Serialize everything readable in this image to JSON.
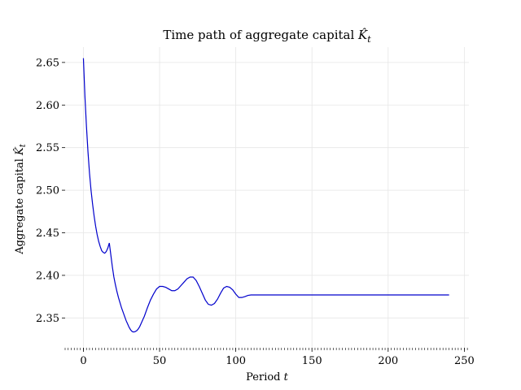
{
  "chart_data": {
    "type": "line",
    "title": "Time path of aggregate capital K̂_t",
    "xlabel": "Period t",
    "ylabel": "Aggregate capital K̂_t",
    "xlim": [
      -12,
      253
    ],
    "ylim": [
      2.315,
      2.668
    ],
    "xticks": [
      0,
      50,
      100,
      150,
      200,
      250
    ],
    "yticks": [
      2.35,
      2.4,
      2.45,
      2.5,
      2.55,
      2.6,
      2.65
    ],
    "x_minor_step": 2,
    "grid": true,
    "line_color": "#0000cc",
    "series": [
      {
        "x": [
          0,
          1,
          2,
          3,
          4,
          5,
          6,
          7,
          8,
          9,
          10,
          11,
          12,
          13,
          14,
          15,
          16,
          17,
          18,
          19,
          20,
          21,
          22,
          23,
          24,
          25,
          26,
          27,
          28,
          29,
          30,
          31,
          32,
          33,
          34,
          35,
          36,
          37,
          38,
          39,
          40,
          42,
          44,
          46,
          48,
          50,
          52,
          54,
          56,
          58,
          60,
          62,
          64,
          66,
          68,
          70,
          72,
          74,
          76,
          78,
          80,
          82,
          84,
          86,
          88,
          90,
          92,
          94,
          96,
          98,
          100,
          102,
          104,
          106,
          108,
          110,
          112,
          114,
          116,
          118,
          120,
          122,
          124,
          126,
          128,
          130,
          135,
          140,
          150,
          160,
          170,
          180,
          190,
          200,
          210,
          220,
          230,
          240
        ],
        "y": [
          2.655,
          2.61,
          2.575,
          2.545,
          2.52,
          2.5,
          2.484,
          2.47,
          2.458,
          2.448,
          2.44,
          2.434,
          2.429,
          2.427,
          2.426,
          2.428,
          2.432,
          2.438,
          2.424,
          2.41,
          2.398,
          2.389,
          2.381,
          2.374,
          2.368,
          2.362,
          2.357,
          2.352,
          2.347,
          2.343,
          2.339,
          2.336,
          2.334,
          2.3335,
          2.334,
          2.335,
          2.337,
          2.34,
          2.344,
          2.348,
          2.352,
          2.362,
          2.371,
          2.378,
          2.384,
          2.387,
          2.387,
          2.386,
          2.384,
          2.382,
          2.382,
          2.384,
          2.388,
          2.392,
          2.396,
          2.398,
          2.398,
          2.394,
          2.387,
          2.379,
          2.371,
          2.366,
          2.365,
          2.367,
          2.372,
          2.379,
          2.385,
          2.387,
          2.386,
          2.383,
          2.378,
          2.374,
          2.374,
          2.375,
          2.3765,
          2.377,
          2.377,
          2.377,
          2.377,
          2.377,
          2.377,
          2.377,
          2.377,
          2.377,
          2.377,
          2.377,
          2.377,
          2.377,
          2.377,
          2.377,
          2.377,
          2.377,
          2.377,
          2.377,
          2.377,
          2.377,
          2.377,
          2.377
        ]
      }
    ]
  }
}
